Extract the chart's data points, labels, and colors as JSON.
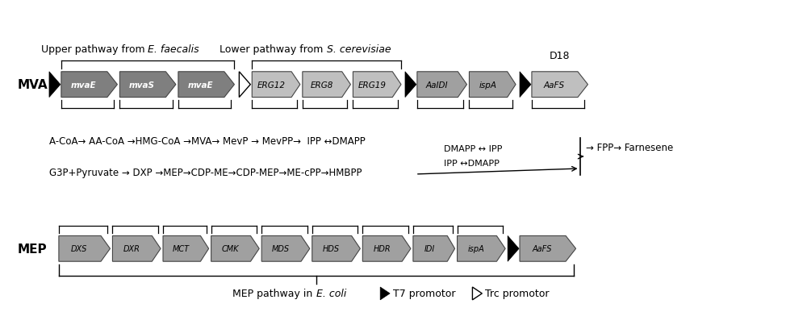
{
  "fig_width": 10.0,
  "fig_height": 4.14,
  "bg_color": "#ffffff",
  "mva_genes_dark": [
    "mvaE",
    "mvaS",
    "mvaE"
  ],
  "mva_genes_light_1": [
    "ERG12",
    "ERG8",
    "ERG19"
  ],
  "mva_genes_mid": [
    "AaIDI",
    "ispA"
  ],
  "mva_gene_last": "AaFS",
  "mep_genes": [
    "DXS",
    "DXR",
    "MCT",
    "CMK",
    "MDS",
    "HDS",
    "HDR",
    "IDI",
    "ispA",
    "AaFS"
  ],
  "d18_label": "D18",
  "mva_label": "MVA",
  "mep_label": "MEP",
  "upper_text1": "Upper pathway from ",
  "upper_text2": "E. faecalis",
  "lower_text1": "  Lower pathway from ",
  "lower_text2": "S. cerevisiae",
  "mva_path_line": "A-CoA→ AA-CoA →HMG-CoA →MVA→ MevP → MevPP→ IPP ⇔DMAPP",
  "g3p_path_line": "G3P+Pyruvate → DXP →MEP→CDP-ME→CDP-MEP→ME-cPP→HMBPP",
  "fpp_line": "→ FPP→ Farnesene",
  "dmapp_ipp1": "DMAPP ⇔ IPP",
  "dmapp_ipp2": "IPP ⇔DMAPP",
  "mep_footer1": "MEP pathway in ",
  "mep_footer2": "E. coli",
  "legend_t7": "T7 promotor",
  "legend_trc": "Trc promotor",
  "gray_dark": "#7f7f7f",
  "gray_light": "#bfbfbf",
  "gray_mid": "#a0a0a0",
  "black": "#000000",
  "white": "#ffffff"
}
